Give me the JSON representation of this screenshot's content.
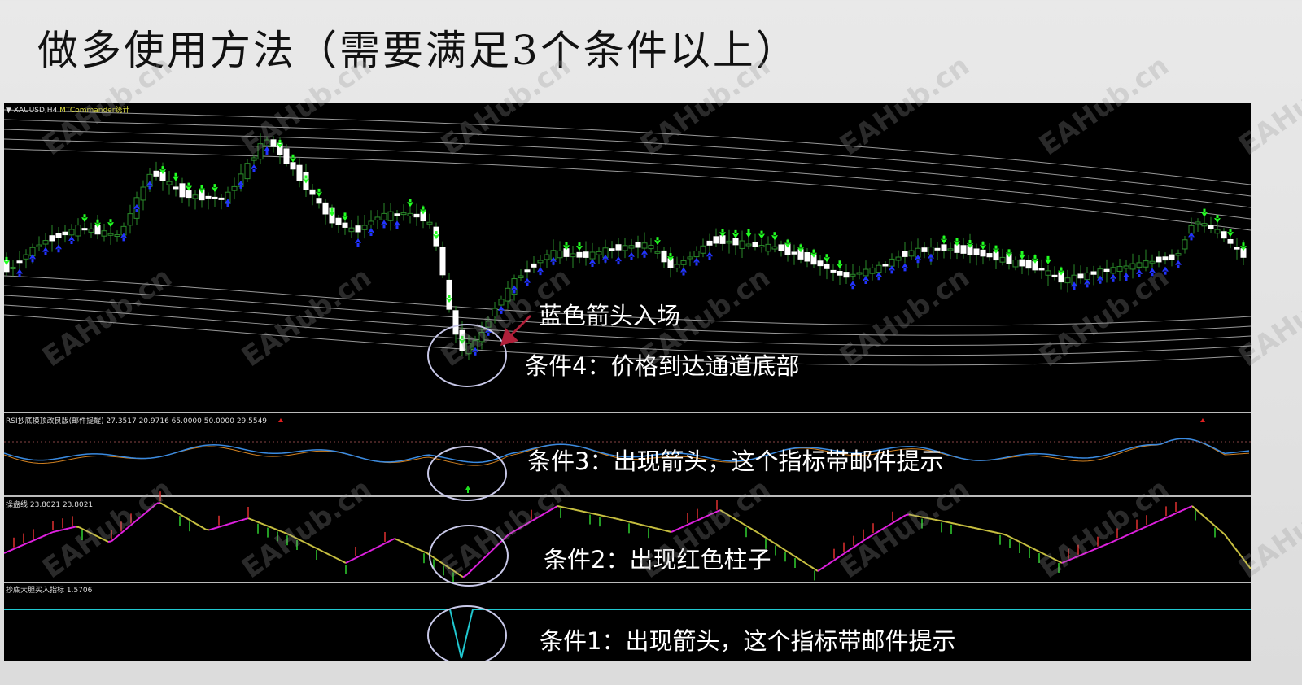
{
  "slide": {
    "title": "做多使用方法（需要满足3个条件以上）"
  },
  "chart": {
    "main_panel": {
      "symbol": "XAUUSD,H4",
      "indicator": "MTCommander统计"
    },
    "rsi_panel": {
      "label": "RSI抄底摸顶改良版(邮件提醒) 27.3517 20.9716 65.0000 50.0000 29.5549"
    },
    "trend_panel": {
      "label": "操盘线 23.8021 23.8021"
    },
    "signal_panel": {
      "label": "抄底大胆买入指标 1.5706"
    }
  },
  "annotations": {
    "entry": "蓝色箭头入场",
    "cond4": "条件4：价格到达通道底部",
    "cond3": "条件3：出现箭头，这个指标带邮件提示",
    "cond2": "条件2：出现红色柱子",
    "cond1": "条件1：出现箭头，这个指标带邮件提示"
  },
  "watermark": "EAHub.cn",
  "colors": {
    "up_arrow": "#2233ff",
    "down_arrow": "#22ff22",
    "rise_line": "#e020e0",
    "fall_line": "#c8c040",
    "signal_line": "#20c8d0",
    "pointer_arrow": "#b0203a"
  }
}
